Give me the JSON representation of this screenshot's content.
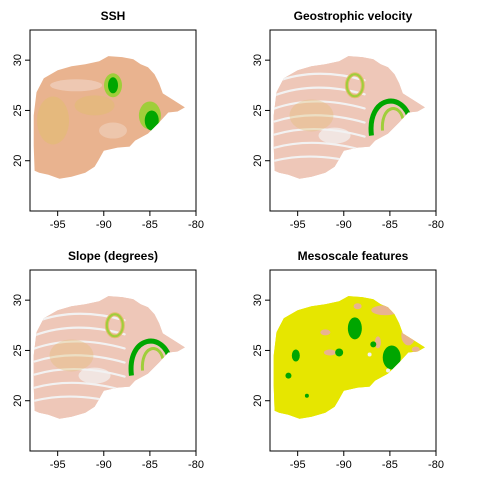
{
  "chart_data": [
    {
      "type": "heatmap",
      "title": "SSH",
      "xlim": [
        -98,
        -80
      ],
      "ylim": [
        15,
        33
      ],
      "x_ticks": [
        -95,
        -90,
        -85,
        -80
      ],
      "y_ticks": [
        20,
        25,
        30
      ],
      "xlabel": "",
      "ylabel": "",
      "palette": [
        "#e9b38f",
        "#e2bd6f",
        "#9fce3a",
        "#00a600"
      ]
    },
    {
      "type": "heatmap",
      "title": "Geostrophic velocity",
      "xlim": [
        -98,
        -80
      ],
      "ylim": [
        15,
        33
      ],
      "x_ticks": [
        -95,
        -90,
        -85,
        -80
      ],
      "y_ticks": [
        20,
        25,
        30
      ],
      "xlabel": "",
      "ylabel": "",
      "palette": [
        "#f2f2f2",
        "#eec7b8",
        "#e2bd6f",
        "#00a600"
      ]
    },
    {
      "type": "heatmap",
      "title": "Slope (degrees)",
      "xlim": [
        -98,
        -80
      ],
      "ylim": [
        15,
        33
      ],
      "x_ticks": [
        -95,
        -90,
        -85,
        -80
      ],
      "y_ticks": [
        20,
        25,
        30
      ],
      "xlabel": "",
      "ylabel": "",
      "palette": [
        "#f2f2f2",
        "#eec7b8",
        "#e2bd6f",
        "#00a600"
      ]
    },
    {
      "type": "heatmap",
      "title": "Mesoscale features",
      "xlim": [
        -98,
        -80
      ],
      "ylim": [
        15,
        33
      ],
      "x_ticks": [
        -95,
        -90,
        -85,
        -80
      ],
      "y_ticks": [
        20,
        25,
        30
      ],
      "xlabel": "",
      "ylabel": "",
      "palette": [
        "#e6e600",
        "#e9b38f",
        "#00a600",
        "#f2f2f2"
      ]
    }
  ]
}
